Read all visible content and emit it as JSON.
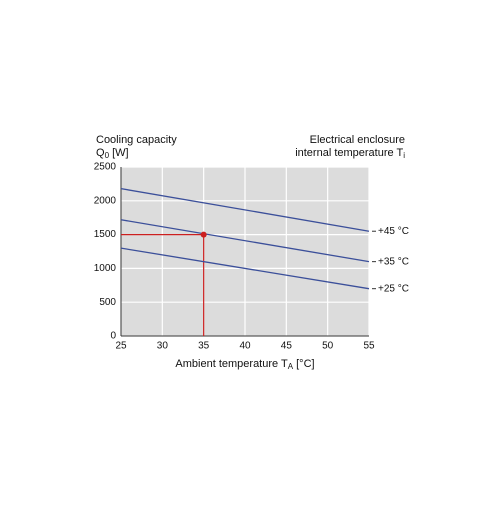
{
  "chart_data": {
    "type": "line",
    "y_title": {
      "text": "Cooling capacity",
      "symbol": "Q",
      "subscript": "0",
      "unit": " [W]"
    },
    "legend_title": {
      "line1": "Electrical enclosure",
      "line2": "internal temperature T",
      "subscript": "i"
    },
    "x_label": {
      "text": "Ambient temperature T",
      "subscript": "A",
      "unit": " [°C]"
    },
    "xlim": [
      25,
      55
    ],
    "xticks": [
      25,
      30,
      35,
      40,
      45,
      50,
      55
    ],
    "ylim": [
      0,
      2500
    ],
    "yticks": [
      0,
      500,
      1000,
      1500,
      2000,
      2500
    ],
    "grid": true,
    "series": [
      {
        "name": "+45 °C",
        "color": "#3b4f9a",
        "x": [
          25,
          55
        ],
        "values": [
          2180,
          1550
        ]
      },
      {
        "name": "+35 °C",
        "color": "#3b4f9a",
        "x": [
          25,
          55
        ],
        "values": [
          1720,
          1100
        ]
      },
      {
        "name": "+25 °C",
        "color": "#3b4f9a",
        "x": [
          25,
          55
        ],
        "values": [
          1300,
          700
        ]
      }
    ],
    "marker": {
      "x": 35,
      "y": 1500,
      "color": "#cc1f1f"
    }
  }
}
